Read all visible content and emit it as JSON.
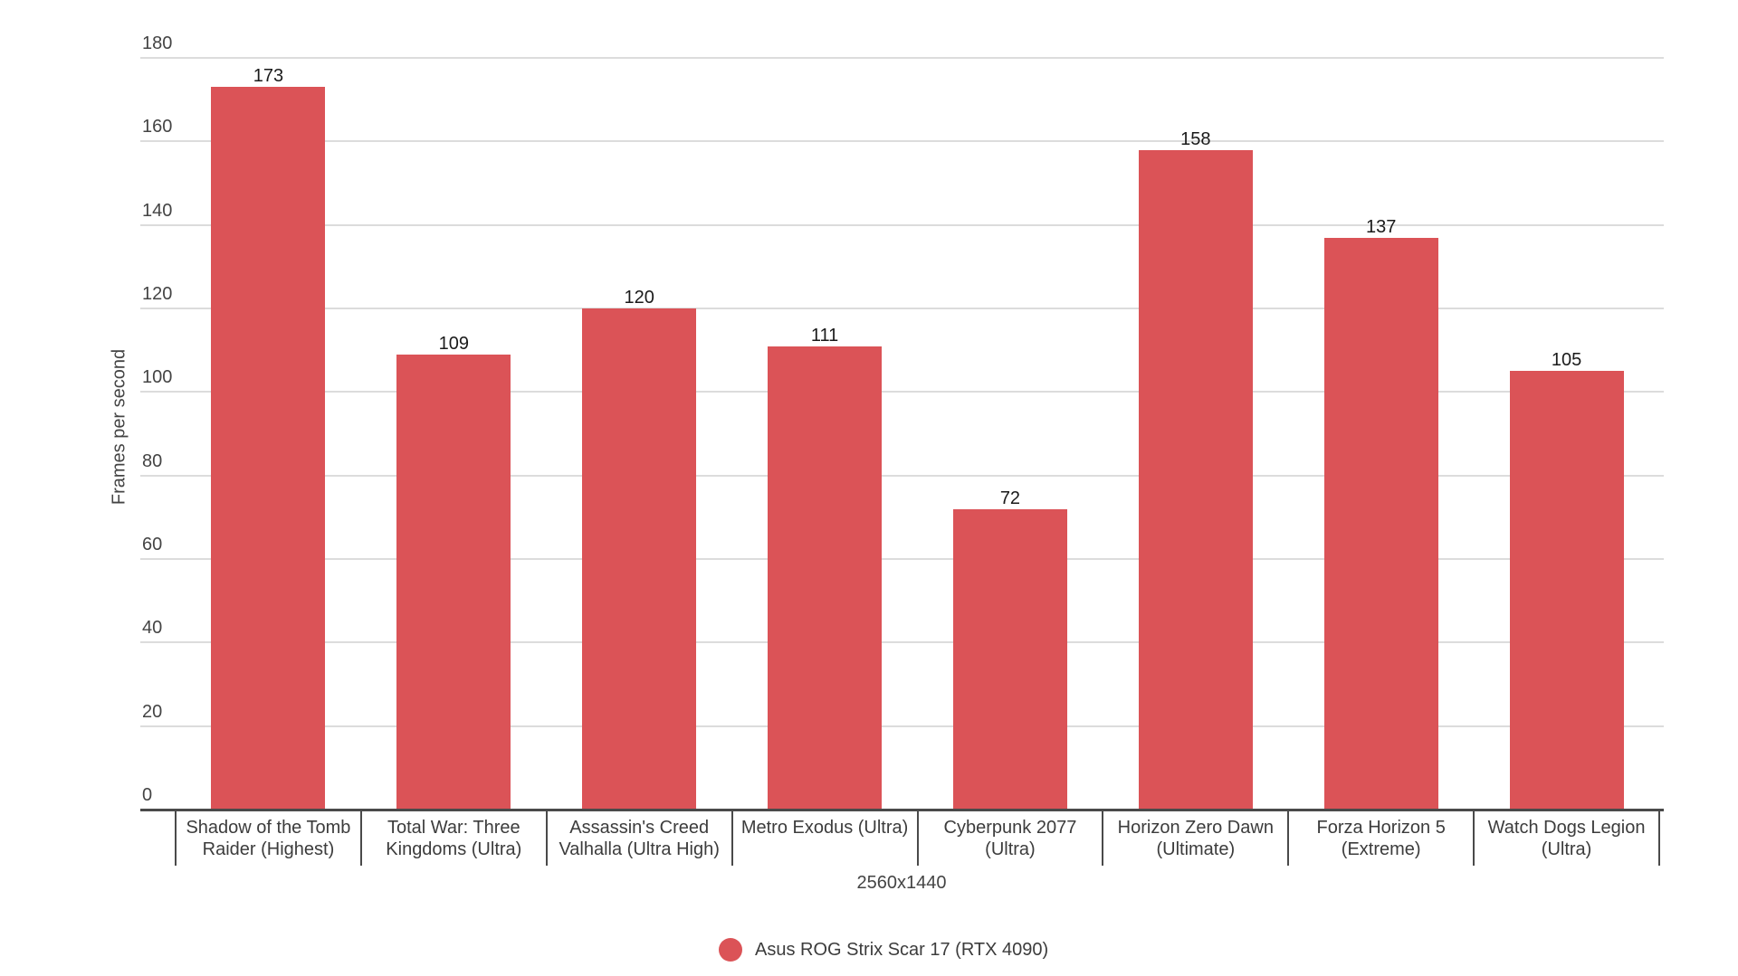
{
  "chart_data": {
    "type": "bar",
    "title": "",
    "xlabel": "2560x1440",
    "ylabel": "Frames per second",
    "ylim": [
      0,
      180
    ],
    "yticks": [
      0,
      20,
      40,
      60,
      80,
      100,
      120,
      140,
      160,
      180
    ],
    "grid": true,
    "legend_position": "bottom",
    "categories": [
      "Shadow of the Tomb Raider (Highest)",
      "Total War: Three Kingdoms (Ultra)",
      "Assassin's Creed Valhalla (Ultra High)",
      "Metro Exodus (Ultra)",
      "Cyberpunk 2077 (Ultra)",
      "Horizon Zero Dawn (Ultimate)",
      "Forza Horizon 5 (Extreme)",
      "Watch Dogs Legion (Ultra)"
    ],
    "category_lines": [
      [
        "Shadow of the Tomb",
        "Raider (Highest)"
      ],
      [
        "Total War: Three",
        "Kingdoms (Ultra)"
      ],
      [
        "Assassin's Creed",
        "Valhalla (Ultra High)"
      ],
      [
        "Metro Exodus (Ultra)",
        ""
      ],
      [
        "Cyberpunk 2077",
        "(Ultra)"
      ],
      [
        "Horizon Zero Dawn",
        "(Ultimate)"
      ],
      [
        "Forza Horizon 5",
        "(Extreme)"
      ],
      [
        "Watch Dogs Legion",
        "(Ultra)"
      ]
    ],
    "series": [
      {
        "name": "Asus ROG Strix Scar 17 (RTX 4090)",
        "color": "#db5357",
        "values": [
          173,
          109,
          120,
          111,
          72,
          158,
          137,
          105
        ]
      }
    ]
  }
}
